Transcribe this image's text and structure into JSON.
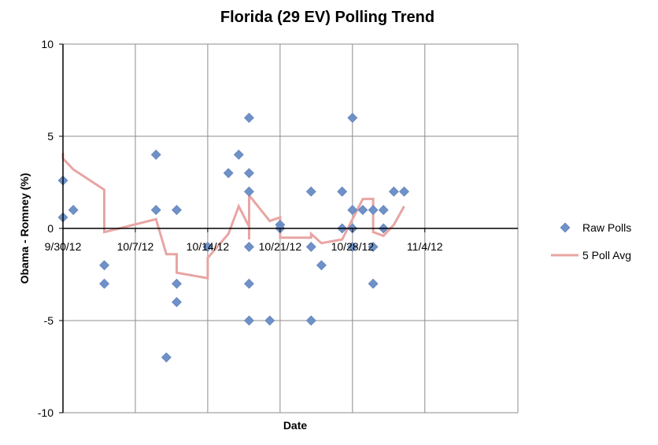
{
  "chart_data": {
    "type": "scatter",
    "title": "Florida (29 EV) Polling Trend",
    "xlabel": "Date",
    "ylabel": "Obama - Romney (%)",
    "ylim": [
      -10,
      10
    ],
    "yticks": [
      -10,
      -5,
      0,
      5,
      10
    ],
    "xlim": [
      "9/30/12",
      "11/13/12"
    ],
    "xticks": [
      "9/30/12",
      "10/7/12",
      "10/14/12",
      "10/21/12",
      "10/28/12",
      "11/4/12"
    ],
    "grid": true,
    "legend_position": "right",
    "colors": {
      "raw": "#6f91c8",
      "avg": "#e8a5a3"
    },
    "series": [
      {
        "name": "Raw Polls",
        "kind": "scatter",
        "points": [
          {
            "x": "9/30/12",
            "y": 2.6
          },
          {
            "x": "9/30/12",
            "y": 0.6
          },
          {
            "x": "10/1/12",
            "y": 1
          },
          {
            "x": "10/4/12",
            "y": -2
          },
          {
            "x": "10/4/12",
            "y": -3
          },
          {
            "x": "10/9/12",
            "y": 4
          },
          {
            "x": "10/9/12",
            "y": 1
          },
          {
            "x": "10/10/12",
            "y": -7
          },
          {
            "x": "10/11/12",
            "y": 1
          },
          {
            "x": "10/11/12",
            "y": -3
          },
          {
            "x": "10/11/12",
            "y": -4
          },
          {
            "x": "10/14/12",
            "y": -1
          },
          {
            "x": "10/16/12",
            "y": 3
          },
          {
            "x": "10/17/12",
            "y": 4
          },
          {
            "x": "10/18/12",
            "y": 6
          },
          {
            "x": "10/18/12",
            "y": 3
          },
          {
            "x": "10/18/12",
            "y": 2
          },
          {
            "x": "10/18/12",
            "y": -1
          },
          {
            "x": "10/18/12",
            "y": -3
          },
          {
            "x": "10/18/12",
            "y": -5
          },
          {
            "x": "10/20/12",
            "y": -5
          },
          {
            "x": "10/21/12",
            "y": 0.2
          },
          {
            "x": "10/21/12",
            "y": 0
          },
          {
            "x": "10/24/12",
            "y": 2
          },
          {
            "x": "10/24/12",
            "y": -1
          },
          {
            "x": "10/24/12",
            "y": -5
          },
          {
            "x": "10/25/12",
            "y": -2
          },
          {
            "x": "10/27/12",
            "y": 2
          },
          {
            "x": "10/27/12",
            "y": 0
          },
          {
            "x": "10/28/12",
            "y": 6
          },
          {
            "x": "10/28/12",
            "y": 1
          },
          {
            "x": "10/28/12",
            "y": 0
          },
          {
            "x": "10/28/12",
            "y": -1
          },
          {
            "x": "10/29/12",
            "y": 1
          },
          {
            "x": "10/30/12",
            "y": 1
          },
          {
            "x": "10/30/12",
            "y": -1
          },
          {
            "x": "10/30/12",
            "y": -3
          },
          {
            "x": "10/31/12",
            "y": 1
          },
          {
            "x": "10/31/12",
            "y": 0
          },
          {
            "x": "11/1/12",
            "y": 2
          },
          {
            "x": "11/2/12",
            "y": 2
          }
        ]
      },
      {
        "name": "5 Poll Avg",
        "kind": "line",
        "points": [
          {
            "x": "9/30/12",
            "y": 4.1
          },
          {
            "x": "9/30/12",
            "y": 3.8
          },
          {
            "x": "10/1/12",
            "y": 3.2
          },
          {
            "x": "10/4/12",
            "y": 2.1
          },
          {
            "x": "10/4/12",
            "y": -0.2
          },
          {
            "x": "10/9/12",
            "y": 0.5
          },
          {
            "x": "10/10/12",
            "y": -1.4
          },
          {
            "x": "10/11/12",
            "y": -1.4
          },
          {
            "x": "10/11/12",
            "y": -2.4
          },
          {
            "x": "10/14/12",
            "y": -2.7
          },
          {
            "x": "10/14/12",
            "y": -1.6
          },
          {
            "x": "10/16/12",
            "y": -0.3
          },
          {
            "x": "10/17/12",
            "y": 1.2
          },
          {
            "x": "10/18/12",
            "y": 0.1
          },
          {
            "x": "10/18/12",
            "y": -0.6
          },
          {
            "x": "10/18/12",
            "y": 1.8
          },
          {
            "x": "10/20/12",
            "y": 0.4
          },
          {
            "x": "10/21/12",
            "y": 0.6
          },
          {
            "x": "10/21/12",
            "y": -0.5
          },
          {
            "x": "10/24/12",
            "y": -0.5
          },
          {
            "x": "10/24/12",
            "y": -0.3
          },
          {
            "x": "10/25/12",
            "y": -0.8
          },
          {
            "x": "10/27/12",
            "y": -0.6
          },
          {
            "x": "10/28/12",
            "y": 0.5
          },
          {
            "x": "10/29/12",
            "y": 1.6
          },
          {
            "x": "10/30/12",
            "y": 1.6
          },
          {
            "x": "10/30/12",
            "y": -0.2
          },
          {
            "x": "10/31/12",
            "y": -0.4
          },
          {
            "x": "11/1/12",
            "y": 0.2
          },
          {
            "x": "11/2/12",
            "y": 1.2
          }
        ]
      }
    ]
  }
}
